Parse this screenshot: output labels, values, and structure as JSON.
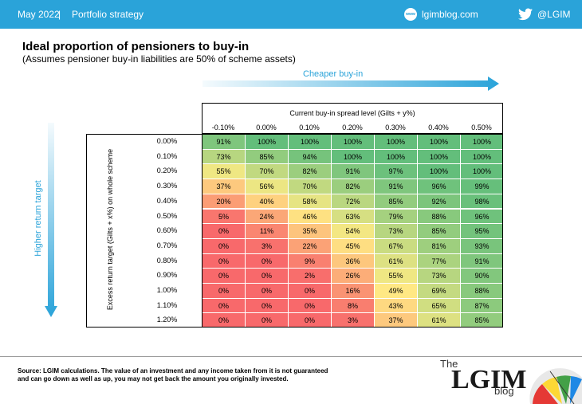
{
  "header": {
    "date": "May 2022",
    "separator": "|",
    "section": "Portfolio strategy",
    "blog_icon_text": "www",
    "blog_url": "lgimblog.com",
    "twitter_handle": "@LGIM"
  },
  "title": "Ideal proportion of pensioners to buy-in",
  "subtitle": "(Assumes pensioner buy-in liabilities are 50% of scheme assets)",
  "arrows": {
    "horizontal_label": "Cheaper buy-in",
    "vertical_label": "Higher return target"
  },
  "chart_data": {
    "type": "table",
    "column_axis_title": "Current  buy-in spread level (Gilts + y%)",
    "row_axis_title": "Excess return target (Gilts + x%) on whole scheme",
    "columns": [
      "-0.10%",
      "0.00%",
      "0.10%",
      "0.20%",
      "0.30%",
      "0.40%",
      "0.50%"
    ],
    "rows": [
      "0.00%",
      "0.10%",
      "0.20%",
      "0.30%",
      "0.40%",
      "0.50%",
      "0.60%",
      "0.70%",
      "0.80%",
      "0.90%",
      "1.00%",
      "1.10%",
      "1.20%"
    ],
    "values": [
      [
        91,
        100,
        100,
        100,
        100,
        100,
        100
      ],
      [
        73,
        85,
        94,
        100,
        100,
        100,
        100
      ],
      [
        55,
        70,
        82,
        91,
        97,
        100,
        100
      ],
      [
        37,
        56,
        70,
        82,
        91,
        96,
        99
      ],
      [
        20,
        40,
        58,
        72,
        85,
        92,
        98
      ],
      [
        5,
        24,
        46,
        63,
        79,
        88,
        96
      ],
      [
        0,
        11,
        35,
        54,
        73,
        85,
        95
      ],
      [
        0,
        3,
        22,
        45,
        67,
        81,
        93
      ],
      [
        0,
        0,
        9,
        36,
        61,
        77,
        91
      ],
      [
        0,
        0,
        2,
        26,
        55,
        73,
        90
      ],
      [
        0,
        0,
        0,
        16,
        49,
        69,
        88
      ],
      [
        0,
        0,
        0,
        8,
        43,
        65,
        87
      ],
      [
        0,
        0,
        0,
        3,
        37,
        61,
        85
      ]
    ],
    "value_suffix": "%"
  },
  "footer": {
    "source_label": "Source:",
    "source_text": "LGIM calculations. The value of an investment and any income taken from it is not guaranteed and can go down as well as up, you  may not get back the amount you  originally invested."
  },
  "logo": {
    "the": "The",
    "name": "LGIM",
    "blog": "blog"
  },
  "colors": {
    "brand_blue": "#2aa3d9",
    "low": "#f8696b",
    "mid": "#ffeb84",
    "high": "#63be7b"
  }
}
